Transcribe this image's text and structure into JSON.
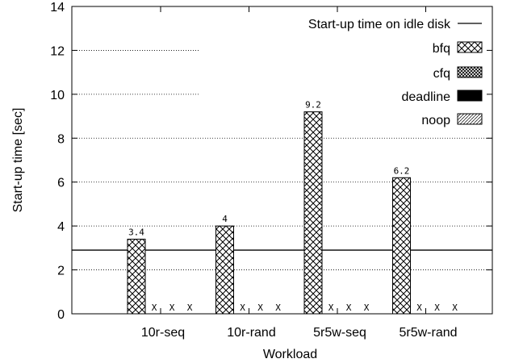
{
  "chart_data": {
    "type": "bar",
    "xlabel": "Workload",
    "ylabel": "Start-up time [sec]",
    "ylim": [
      0,
      14
    ],
    "yticks": [
      0,
      2,
      4,
      6,
      8,
      10,
      12,
      14
    ],
    "grid": true,
    "legend_position": "top-right",
    "categories": [
      "10r-seq",
      "10r-rand",
      "5r5w-seq",
      "5r5w-rand"
    ],
    "reference_line": {
      "name": "Start-up time on idle disk",
      "value": 2.9
    },
    "series": [
      {
        "name": "bfq",
        "values": [
          3.4,
          4,
          9.2,
          6.2
        ],
        "labels": [
          "3.4",
          "4",
          "9.2",
          "6.2"
        ],
        "pattern": "crosshatch"
      },
      {
        "name": "cfq",
        "values": [
          null,
          null,
          null,
          null
        ],
        "pattern": "dense-crosshatch"
      },
      {
        "name": "deadline",
        "values": [
          null,
          null,
          null,
          null
        ],
        "pattern": "solid-black"
      },
      {
        "name": "noop",
        "values": [
          null,
          null,
          null,
          null
        ],
        "pattern": "diagonal"
      }
    ],
    "missing_marker": "X"
  }
}
